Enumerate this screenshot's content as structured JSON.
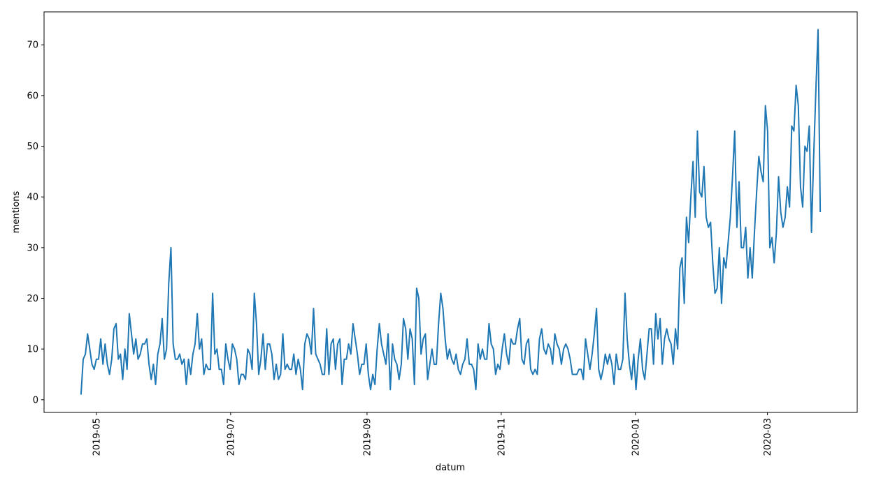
{
  "chart_data": {
    "type": "line",
    "title": "",
    "xlabel": "datum",
    "ylabel": "mentions",
    "x_start": "2019-04-24",
    "x_end": "2020-03-25",
    "x_ticks": [
      "2019-05",
      "2019-07",
      "2019-09",
      "2019-11",
      "2020-01",
      "2020-03"
    ],
    "y_ticks": [
      0,
      10,
      20,
      30,
      40,
      50,
      60,
      70
    ],
    "ylim": [
      -2.5,
      76.5
    ],
    "grid": false,
    "legend": "none",
    "series": [
      {
        "color": "#1f77b4",
        "values": [
          1,
          8,
          9,
          13,
          10,
          7,
          6,
          8,
          8,
          12,
          7,
          11,
          7,
          5,
          8,
          14,
          15,
          8,
          9,
          4,
          10,
          6,
          17,
          13,
          9,
          12,
          8,
          9,
          11,
          11,
          12,
          7,
          4,
          7,
          3,
          9,
          11,
          16,
          8,
          10,
          23,
          30,
          11,
          8,
          8,
          9,
          7,
          8,
          3,
          8,
          5,
          9,
          11,
          17,
          10,
          12,
          5,
          7,
          6,
          6,
          21,
          9,
          10,
          6,
          6,
          3,
          11,
          8,
          6,
          11,
          10,
          8,
          3,
          5,
          5,
          4,
          10,
          9,
          6,
          21,
          15,
          5,
          8,
          13,
          6,
          11,
          11,
          9,
          4,
          7,
          4,
          5,
          13,
          6,
          7,
          6,
          6,
          9,
          5,
          8,
          6,
          2,
          11,
          13,
          12,
          9,
          18,
          9,
          8,
          7,
          5,
          5,
          14,
          5,
          11,
          12,
          6,
          11,
          12,
          3,
          8,
          8,
          11,
          9,
          15,
          12,
          9,
          5,
          7,
          7,
          11,
          5,
          2,
          5,
          3,
          10,
          15,
          11,
          9,
          7,
          13,
          2,
          11,
          8,
          7,
          4,
          7,
          16,
          14,
          8,
          14,
          12,
          3,
          22,
          20,
          9,
          12,
          13,
          4,
          7,
          10,
          7,
          7,
          15,
          21,
          18,
          12,
          8,
          10,
          8,
          7,
          9,
          6,
          5,
          7,
          8,
          12,
          7,
          7,
          6,
          2,
          11,
          8,
          10,
          8,
          8,
          15,
          11,
          10,
          5,
          7,
          6,
          10,
          13,
          9,
          7,
          12,
          11,
          11,
          14,
          16,
          8,
          7,
          11,
          12,
          6,
          5,
          6,
          5,
          12,
          14,
          10,
          9,
          11,
          10,
          7,
          13,
          11,
          10,
          7,
          10,
          11,
          10,
          8,
          5,
          5,
          5,
          6,
          6,
          4,
          12,
          9,
          6,
          9,
          13,
          18,
          6,
          4,
          6,
          9,
          7,
          9,
          7,
          3,
          9,
          6,
          6,
          8,
          21,
          12,
          7,
          4,
          9,
          2,
          8,
          12,
          6,
          4,
          9,
          14,
          14,
          7,
          17,
          12,
          16,
          7,
          12,
          14,
          12,
          11,
          7,
          14,
          10,
          26,
          28,
          19,
          36,
          31,
          40,
          47,
          36,
          53,
          41,
          40,
          46,
          36,
          34,
          35,
          27,
          21,
          22,
          30,
          19,
          28,
          26,
          31,
          36,
          44,
          53,
          34,
          43,
          30,
          30,
          34,
          24,
          30,
          24,
          33,
          41,
          48,
          45,
          43,
          58,
          53,
          30,
          32,
          27,
          33,
          44,
          37,
          34,
          36,
          42,
          38,
          54,
          53,
          62,
          58,
          42,
          38,
          50,
          49,
          54,
          33,
          48,
          61,
          73,
          37
        ]
      }
    ]
  }
}
